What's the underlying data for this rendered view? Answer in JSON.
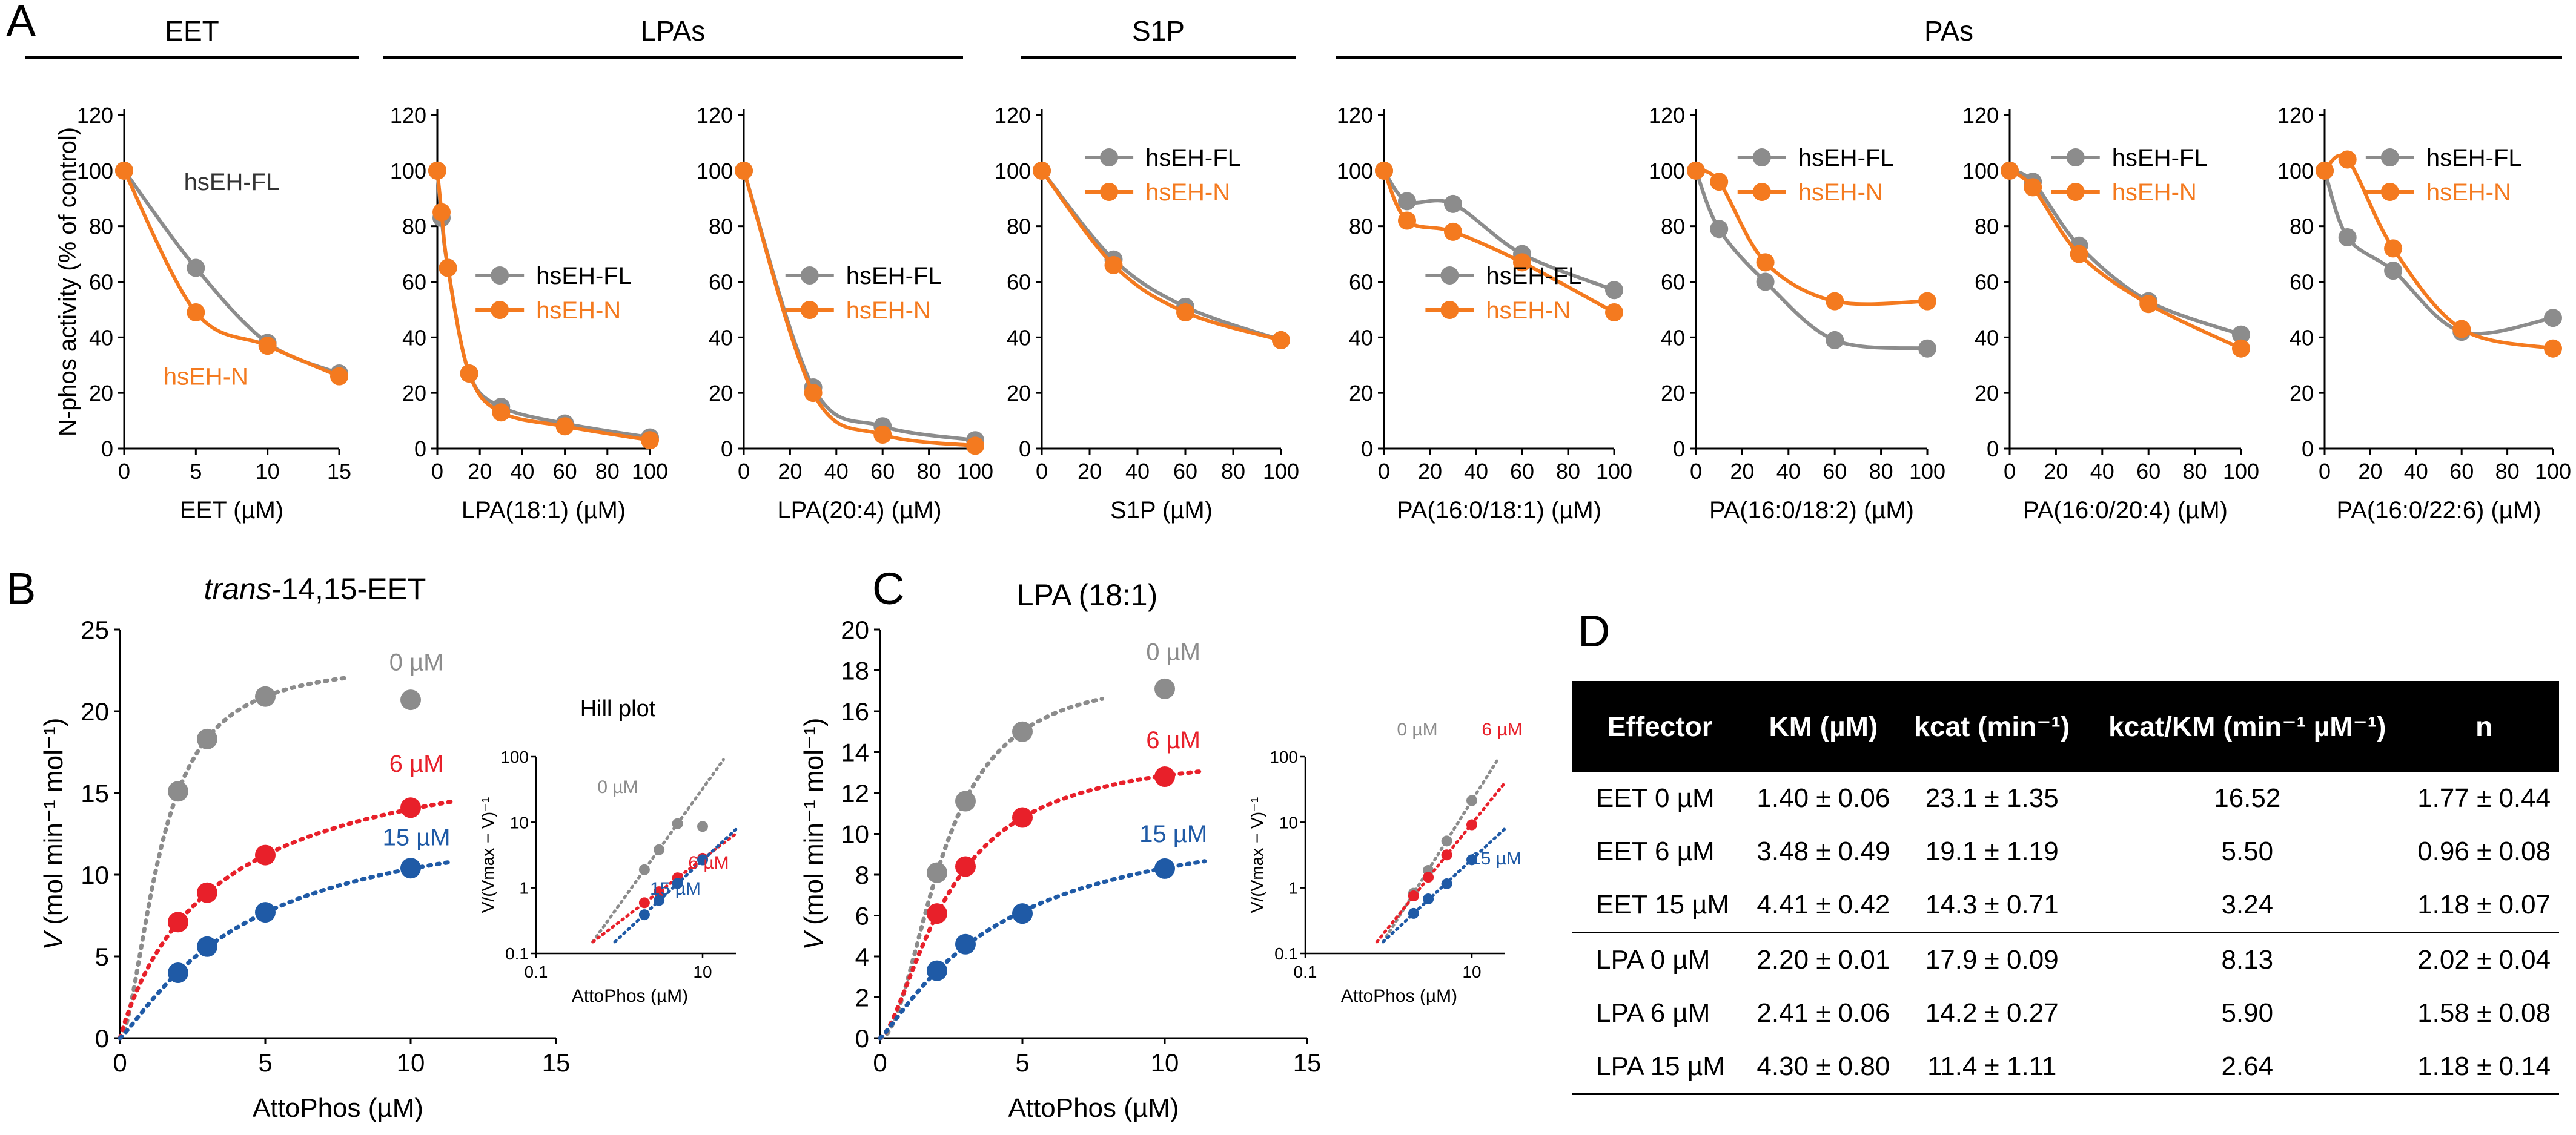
{
  "colors": {
    "fl": "#8c8c8c",
    "n": "#f47a1f",
    "gray": "#8c8c8c",
    "red": "#e8202a",
    "blue": "#1f5aa6"
  },
  "panel_letters": [
    "A",
    "B",
    "C",
    "D"
  ],
  "panelA": {
    "ylabel": "N-phos activity (% of control)",
    "groups": [
      {
        "label": "EET"
      },
      {
        "label": "LPAs"
      },
      {
        "label": "S1P"
      },
      {
        "label": "PAs"
      }
    ]
  },
  "chart_data": [
    {
      "type": "line",
      "id": "A1",
      "xlabel": "EET (µM)",
      "xlim": [
        0,
        15
      ],
      "xticks": [
        0,
        5,
        10,
        15
      ],
      "ylim": [
        0,
        120
      ],
      "series": [
        {
          "name": "hsEH-FL",
          "x": [
            0,
            5,
            10,
            15
          ],
          "y": [
            100,
            65,
            38,
            27
          ]
        },
        {
          "name": "hsEH-N",
          "x": [
            0,
            5,
            10,
            15
          ],
          "y": [
            100,
            49,
            37,
            26
          ]
        }
      ],
      "annotations": [
        "hsEH-FL",
        "hsEH-N"
      ]
    },
    {
      "type": "line",
      "id": "A2",
      "xlabel": "LPA(18:1) (µM)",
      "xlim": [
        0,
        100
      ],
      "xticks": [
        0,
        20,
        40,
        60,
        80,
        100
      ],
      "ylim": [
        0,
        120
      ],
      "series": [
        {
          "name": "hsEH-FL",
          "x": [
            0,
            2,
            5,
            15,
            30,
            60,
            100
          ],
          "y": [
            100,
            83,
            65,
            27,
            15,
            9,
            4
          ]
        },
        {
          "name": "hsEH-N",
          "x": [
            0,
            2,
            5,
            15,
            30,
            60,
            100
          ],
          "y": [
            100,
            85,
            65,
            27,
            13,
            8,
            3
          ]
        }
      ],
      "legend": [
        "hsEH-FL",
        "hsEH-N"
      ]
    },
    {
      "type": "line",
      "id": "A3",
      "xlabel": "LPA(20:4) (µM)",
      "xlim": [
        0,
        100
      ],
      "xticks": [
        0,
        20,
        40,
        60,
        80,
        100
      ],
      "ylim": [
        0,
        120
      ],
      "series": [
        {
          "name": "hsEH-FL",
          "x": [
            0,
            30,
            60,
            100
          ],
          "y": [
            100,
            22,
            8,
            3
          ]
        },
        {
          "name": "hsEH-N",
          "x": [
            0,
            30,
            60,
            100
          ],
          "y": [
            100,
            20,
            5,
            1
          ]
        }
      ],
      "legend": [
        "hsEH-FL",
        "hsEH-N"
      ]
    },
    {
      "type": "line",
      "id": "A4",
      "xlabel": "S1P (µM)",
      "xlim": [
        0,
        100
      ],
      "xticks": [
        0,
        20,
        40,
        60,
        80,
        100
      ],
      "ylim": [
        0,
        120
      ],
      "series": [
        {
          "name": "hsEH-FL",
          "x": [
            0,
            30,
            60,
            100
          ],
          "y": [
            100,
            68,
            51,
            39
          ]
        },
        {
          "name": "hsEH-N",
          "x": [
            0,
            30,
            60,
            100
          ],
          "y": [
            100,
            66,
            49,
            39
          ]
        }
      ],
      "legend": [
        "hsEH-FL",
        "hsEH-N"
      ]
    },
    {
      "type": "line",
      "id": "A5",
      "xlabel": "PA(16:0/18:1) (µM)",
      "xlim": [
        0,
        100
      ],
      "xticks": [
        0,
        20,
        40,
        60,
        80,
        100
      ],
      "ylim": [
        0,
        120
      ],
      "series": [
        {
          "name": "hsEH-FL",
          "x": [
            0,
            10,
            30,
            60,
            100
          ],
          "y": [
            100,
            89,
            88,
            70,
            57
          ]
        },
        {
          "name": "hsEH-N",
          "x": [
            0,
            10,
            30,
            60,
            100
          ],
          "y": [
            100,
            82,
            78,
            67,
            49
          ]
        }
      ],
      "legend": [
        "hsEH-FL",
        "hsEH-N"
      ]
    },
    {
      "type": "line",
      "id": "A6",
      "xlabel": "PA(16:0/18:2) (µM)",
      "xlim": [
        0,
        100
      ],
      "xticks": [
        0,
        20,
        40,
        60,
        80,
        100
      ],
      "ylim": [
        0,
        120
      ],
      "series": [
        {
          "name": "hsEH-FL",
          "x": [
            0,
            10,
            30,
            60,
            100
          ],
          "y": [
            100,
            79,
            60,
            39,
            36
          ]
        },
        {
          "name": "hsEH-N",
          "x": [
            0,
            10,
            30,
            60,
            100
          ],
          "y": [
            100,
            96,
            67,
            53,
            53
          ]
        }
      ],
      "legend": [
        "hsEH-FL",
        "hsEH-N"
      ]
    },
    {
      "type": "line",
      "id": "A7",
      "xlabel": "PA(16:0/20:4) (µM)",
      "xlim": [
        0,
        100
      ],
      "xticks": [
        0,
        20,
        40,
        60,
        80,
        100
      ],
      "ylim": [
        0,
        120
      ],
      "series": [
        {
          "name": "hsEH-FL",
          "x": [
            0,
            10,
            30,
            60,
            100
          ],
          "y": [
            100,
            96,
            73,
            53,
            41
          ]
        },
        {
          "name": "hsEH-N",
          "x": [
            0,
            10,
            30,
            60,
            100
          ],
          "y": [
            100,
            94,
            70,
            52,
            36
          ]
        }
      ],
      "legend": [
        "hsEH-FL",
        "hsEH-N"
      ]
    },
    {
      "type": "line",
      "id": "A8",
      "xlabel": "PA(16:0/22:6) (µM)",
      "xlim": [
        0,
        100
      ],
      "xticks": [
        0,
        20,
        40,
        60,
        80,
        100
      ],
      "ylim": [
        0,
        120
      ],
      "series": [
        {
          "name": "hsEH-FL",
          "x": [
            0,
            10,
            30,
            60,
            100
          ],
          "y": [
            100,
            76,
            64,
            42,
            47
          ]
        },
        {
          "name": "hsEH-N",
          "x": [
            0,
            10,
            30,
            60,
            100
          ],
          "y": [
            100,
            104,
            72,
            43,
            36
          ]
        }
      ],
      "legend": [
        "hsEH-FL",
        "hsEH-N"
      ]
    },
    {
      "type": "scatter",
      "id": "B",
      "title_italic": "trans",
      "title_rest": "-14,15-EET",
      "xlabel": "AttoPhos (µM)",
      "ylabel_v": "V",
      "ylabel_rest": " (mol min⁻¹ mol⁻¹)",
      "xlim": [
        0,
        15
      ],
      "ylim": [
        0,
        25
      ],
      "xticks": [
        0,
        5,
        10,
        15
      ],
      "yticks": [
        0,
        5,
        10,
        15,
        20,
        25
      ],
      "series": [
        {
          "name": "0 µM",
          "x": [
            2,
            3,
            5,
            10
          ],
          "y": [
            15.1,
            18.3,
            20.9,
            20.7
          ],
          "vmax": 23.1,
          "km": 1.4,
          "n": 1.77
        },
        {
          "name": "6 µM",
          "x": [
            2,
            3,
            5,
            10
          ],
          "y": [
            7.1,
            8.9,
            11.2,
            14.1
          ],
          "vmax": 19.1,
          "km": 3.48,
          "n": 0.96
        },
        {
          "name": "15 µM",
          "x": [
            2,
            3,
            5,
            10
          ],
          "y": [
            4.0,
            5.6,
            7.7,
            10.4
          ],
          "vmax": 14.3,
          "km": 4.41,
          "n": 1.18
        }
      ],
      "inset": {
        "title": "Hill plot",
        "xlabel": "AttoPhos (µM)",
        "ylabel": "V/(Vmax − V)⁻¹",
        "yticks": [
          "0.1",
          "1",
          "10",
          "100"
        ],
        "xticks": [
          "0.1",
          "10"
        ]
      }
    },
    {
      "type": "scatter",
      "id": "C",
      "title": "LPA (18:1)",
      "xlabel": "AttoPhos (µM)",
      "ylabel_v": "V",
      "ylabel_rest": " (mol min⁻¹ mol⁻¹)",
      "xlim": [
        0,
        15
      ],
      "ylim": [
        0,
        20
      ],
      "xticks": [
        0,
        5,
        10,
        15
      ],
      "yticks": [
        0,
        2,
        4,
        6,
        8,
        10,
        12,
        14,
        16,
        18,
        20
      ],
      "series": [
        {
          "name": "0 µM",
          "x": [
            2,
            3,
            5,
            10
          ],
          "y": [
            8.1,
            11.6,
            15.0,
            17.1
          ],
          "vmax": 17.9,
          "km": 2.2,
          "n": 2.02
        },
        {
          "name": "6 µM",
          "x": [
            2,
            3,
            5,
            10
          ],
          "y": [
            6.1,
            8.4,
            10.8,
            12.8
          ],
          "vmax": 14.2,
          "km": 2.41,
          "n": 1.58
        },
        {
          "name": "15 µM",
          "x": [
            2,
            3,
            5,
            10
          ],
          "y": [
            3.3,
            4.6,
            6.1,
            8.3
          ],
          "vmax": 11.4,
          "km": 4.3,
          "n": 1.18
        }
      ],
      "inset": {
        "xlabel": "AttoPhos (µM)",
        "ylabel": "V/(Vmax − V)⁻¹",
        "yticks": [
          "0.1",
          "1",
          "10",
          "100"
        ],
        "xticks": [
          "0.1",
          "10"
        ]
      }
    },
    {
      "type": "table",
      "id": "D",
      "columns": [
        "Effector",
        "KM (µM)",
        "kcat (min⁻¹)",
        "kcat/KM (min⁻¹ µM⁻¹)",
        "n"
      ],
      "rows": [
        [
          "EET 0 µM",
          "1.40 ± 0.06",
          "23.1 ± 1.35",
          "16.52",
          "1.77 ± 0.44"
        ],
        [
          "EET 6 µM",
          "3.48 ± 0.49",
          "19.1 ± 1.19",
          "5.50",
          "0.96 ± 0.08"
        ],
        [
          "EET 15 µM",
          "4.41 ± 0.42",
          "14.3 ± 0.71",
          "3.24",
          "1.18 ± 0.07"
        ],
        [
          "LPA 0 µM",
          "2.20 ± 0.01",
          "17.9 ± 0.09",
          "8.13",
          "2.02 ± 0.04"
        ],
        [
          "LPA 6 µM",
          "2.41 ± 0.06",
          "14.2 ± 0.27",
          "5.90",
          "1.58 ± 0.08"
        ],
        [
          "LPA 15 µM",
          "4.30 ± 0.80",
          "11.4 ± 1.11",
          "2.64",
          "1.18 ± 0.14"
        ]
      ]
    }
  ]
}
